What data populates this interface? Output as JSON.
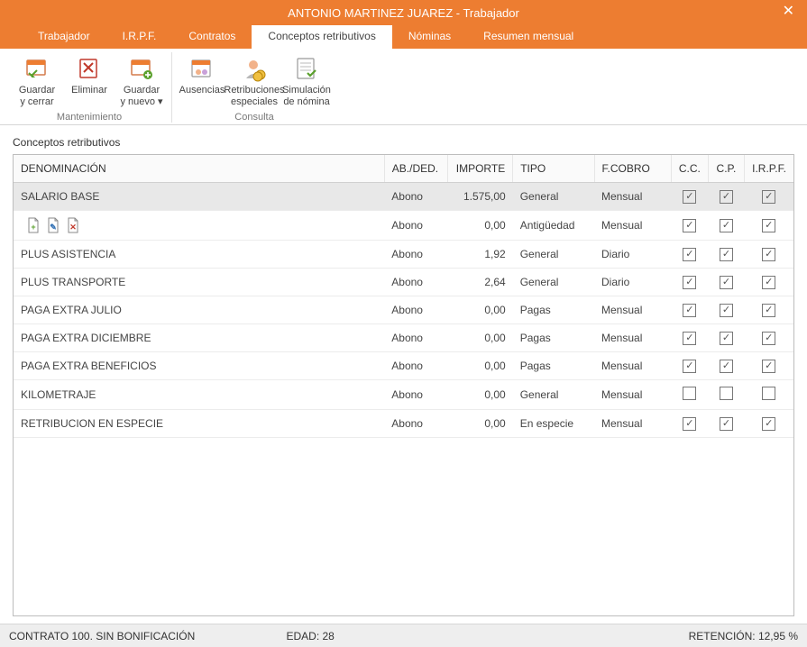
{
  "window": {
    "title": "ANTONIO MARTINEZ JUAREZ - Trabajador"
  },
  "tabs": [
    {
      "label": "Trabajador",
      "active": false
    },
    {
      "label": "I.R.P.F.",
      "active": false
    },
    {
      "label": "Contratos",
      "active": false
    },
    {
      "label": "Conceptos retributivos",
      "active": true
    },
    {
      "label": "Nóminas",
      "active": false
    },
    {
      "label": "Resumen mensual",
      "active": false
    }
  ],
  "ribbon": {
    "groups": [
      {
        "label": "Mantenimiento",
        "buttons": [
          {
            "line1": "Guardar",
            "line2": "y cerrar",
            "icon": "save-close"
          },
          {
            "line1": "Eliminar",
            "line2": "",
            "icon": "delete"
          },
          {
            "line1": "Guardar",
            "line2": "y nuevo ▾",
            "icon": "save-new"
          }
        ]
      },
      {
        "label": "Consulta",
        "buttons": [
          {
            "line1": "Ausencias",
            "line2": "",
            "icon": "ausencias"
          },
          {
            "line1": "Retribuciones",
            "line2": "especiales",
            "icon": "retribuciones"
          },
          {
            "line1": "Simulación",
            "line2": "de nómina",
            "icon": "simulacion"
          }
        ]
      }
    ]
  },
  "section_title": "Conceptos retributivos",
  "grid": {
    "columns": [
      {
        "label": "DENOMINACIÓN",
        "width": "410"
      },
      {
        "label": "AB./DED.",
        "width": "70"
      },
      {
        "label": "IMPORTE",
        "width": "72",
        "align": "right"
      },
      {
        "label": "TIPO",
        "width": "90"
      },
      {
        "label": "F.COBRO",
        "width": "85"
      },
      {
        "label": "C.C.",
        "width": "40",
        "align": "center"
      },
      {
        "label": "C.P.",
        "width": "40",
        "align": "center"
      },
      {
        "label": "I.R.P.F.",
        "width": "50",
        "align": "center"
      }
    ],
    "rows": [
      {
        "denom": "SALARIO BASE",
        "abded": "Abono",
        "importe": "1.575,00",
        "tipo": "General",
        "fcobro": "Mensual",
        "cc": true,
        "cp": true,
        "irpf": true,
        "selected": true
      },
      {
        "denom": "__icons__",
        "abded": "Abono",
        "importe": "0,00",
        "tipo": "Antigüedad",
        "fcobro": "Mensual",
        "cc": true,
        "cp": true,
        "irpf": true
      },
      {
        "denom": "PLUS ASISTENCIA",
        "abded": "Abono",
        "importe": "1,92",
        "tipo": "General",
        "fcobro": "Diario",
        "cc": true,
        "cp": true,
        "irpf": true
      },
      {
        "denom": "PLUS TRANSPORTE",
        "abded": "Abono",
        "importe": "2,64",
        "tipo": "General",
        "fcobro": "Diario",
        "cc": true,
        "cp": true,
        "irpf": true
      },
      {
        "denom": "PAGA EXTRA JULIO",
        "abded": "Abono",
        "importe": "0,00",
        "tipo": "Pagas",
        "fcobro": "Mensual",
        "cc": true,
        "cp": true,
        "irpf": true
      },
      {
        "denom": "PAGA EXTRA DICIEMBRE",
        "abded": "Abono",
        "importe": "0,00",
        "tipo": "Pagas",
        "fcobro": "Mensual",
        "cc": true,
        "cp": true,
        "irpf": true
      },
      {
        "denom": "PAGA EXTRA BENEFICIOS",
        "abded": "Abono",
        "importe": "0,00",
        "tipo": "Pagas",
        "fcobro": "Mensual",
        "cc": true,
        "cp": true,
        "irpf": true
      },
      {
        "denom": "KILOMETRAJE",
        "abded": "Abono",
        "importe": "0,00",
        "tipo": "General",
        "fcobro": "Mensual",
        "cc": false,
        "cp": false,
        "irpf": false
      },
      {
        "denom": "RETRIBUCION EN ESPECIE",
        "abded": "Abono",
        "importe": "0,00",
        "tipo": "En especie",
        "fcobro": "Mensual",
        "cc": true,
        "cp": true,
        "irpf": true
      }
    ]
  },
  "statusbar": {
    "left": "CONTRATO 100.  SIN BONIFICACIÓN",
    "mid": "EDAD: 28",
    "right": "RETENCIÓN: 12,95 %"
  },
  "colors": {
    "accent": "#ed7d31",
    "border": "#d6d6d6",
    "selected_row": "#e8e8e8"
  }
}
